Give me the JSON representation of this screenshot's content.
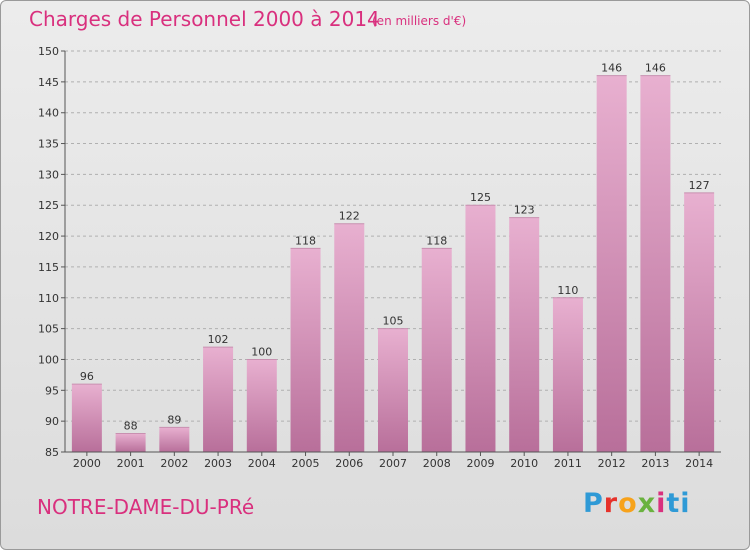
{
  "title": "Charges de Personnel 2000 à 2014",
  "subtitle": "(en milliers d'€)",
  "commune": "NOTRE-DAME-DU-PRé",
  "logo": "Proxiti",
  "colors": {
    "title": "#d9307e",
    "bar_light": "#e8b0d0",
    "bar_dark": "#b86f9a",
    "grid": "#b0b0b0"
  },
  "chart_data": {
    "type": "bar",
    "categories": [
      "2000",
      "2001",
      "2002",
      "2003",
      "2004",
      "2005",
      "2006",
      "2007",
      "2008",
      "2009",
      "2010",
      "2011",
      "2012",
      "2013",
      "2014"
    ],
    "values": [
      96,
      88,
      89,
      102,
      100,
      118,
      122,
      105,
      118,
      125,
      123,
      110,
      146,
      146,
      127
    ],
    "ylim": [
      85,
      150
    ],
    "yticks": [
      85,
      90,
      95,
      100,
      105,
      110,
      115,
      120,
      125,
      130,
      135,
      140,
      145,
      150
    ],
    "grid": "horizontal dashed",
    "legend": "none"
  }
}
